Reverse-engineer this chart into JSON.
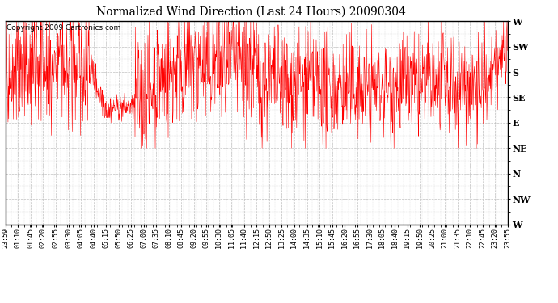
{
  "title": "Normalized Wind Direction (Last 24 Hours) 20090304",
  "copyright_text": "Copyright 2009 Cartronics.com",
  "line_color": "#FF0000",
  "background_color": "#FFFFFF",
  "plot_bg_color": "#FFFFFF",
  "grid_color": "#BBBBBB",
  "y_labels": [
    "W",
    "SW",
    "S",
    "SE",
    "E",
    "NE",
    "N",
    "NW",
    "W"
  ],
  "y_values": [
    8,
    7,
    6,
    5,
    4,
    3,
    2,
    1,
    0
  ],
  "y_min": 0,
  "y_max": 8,
  "x_tick_labels": [
    "23:59",
    "01:10",
    "01:45",
    "02:20",
    "02:55",
    "03:30",
    "04:05",
    "04:40",
    "05:15",
    "05:50",
    "06:25",
    "07:00",
    "07:35",
    "08:10",
    "08:45",
    "09:20",
    "09:55",
    "10:30",
    "11:05",
    "11:40",
    "12:15",
    "12:50",
    "13:25",
    "14:00",
    "14:35",
    "15:10",
    "15:45",
    "16:20",
    "16:55",
    "17:30",
    "18:05",
    "18:40",
    "19:15",
    "19:50",
    "20:25",
    "21:00",
    "21:35",
    "22:10",
    "22:45",
    "23:20",
    "23:55"
  ],
  "seed": 42,
  "n_points": 1440,
  "figwidth": 6.9,
  "figheight": 3.75,
  "dpi": 100
}
